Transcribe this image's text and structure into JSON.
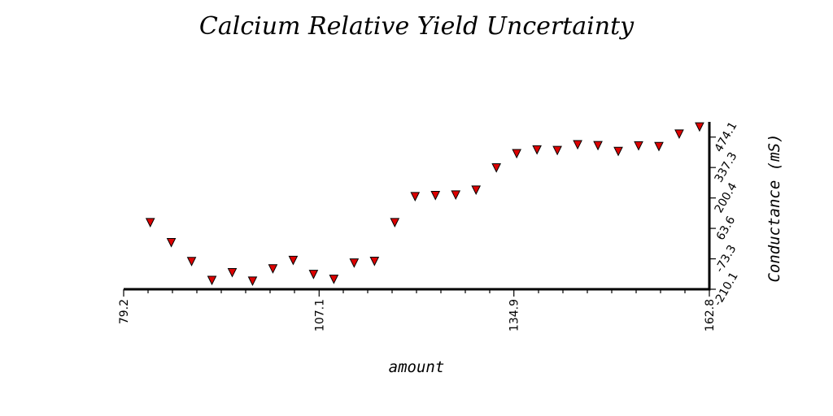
{
  "chart_data": {
    "type": "scatter",
    "title": "Calcium Relative Yield Uncertainty",
    "xlabel": "amount",
    "ylabel": "Conductance (mS)",
    "xlim": [
      79.2,
      162.8
    ],
    "ylim": [
      -210.1,
      542.5
    ],
    "x_ticks": [
      "79.2",
      "107.1",
      "134.9",
      "162.8"
    ],
    "y_ticks": [
      "-210.1",
      "-73.3",
      "63.6",
      "200.4",
      "337.3",
      "474.1"
    ],
    "y_axis_position": "right",
    "grid": false,
    "legend": "none",
    "marker": "triangle-down",
    "marker_color": "#dd0000",
    "series": [
      {
        "x": [
          83.0,
          86.0,
          88.9,
          91.8,
          94.7,
          97.6,
          100.5,
          103.4,
          106.3,
          109.2,
          112.1,
          115.0,
          117.9,
          120.8,
          123.7,
          126.6,
          129.5,
          132.4,
          135.3,
          138.2,
          141.1,
          144.0,
          146.9,
          149.8,
          152.7,
          155.6,
          158.5,
          161.4
        ],
        "y": [
          90,
          0,
          -85,
          -170,
          -135,
          -173,
          -118,
          -80,
          -143,
          -165,
          -92,
          -84,
          90,
          207,
          212,
          214,
          236,
          336,
          400,
          417,
          414,
          440,
          436,
          410,
          435,
          432,
          488,
          520
        ]
      }
    ]
  }
}
